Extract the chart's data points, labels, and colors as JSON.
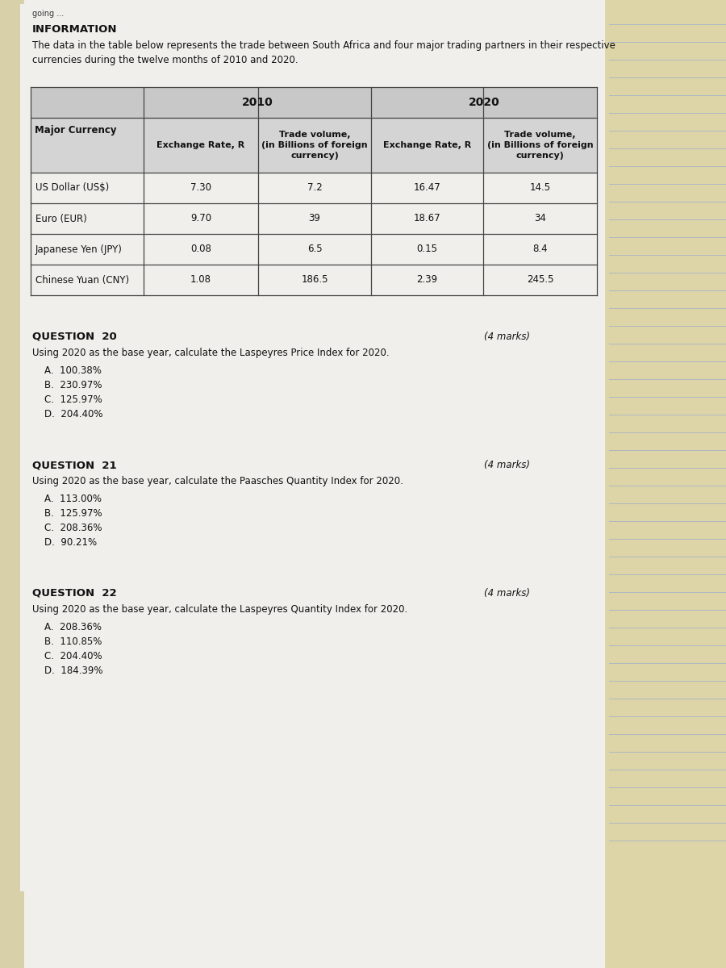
{
  "info_title": "INFORMATION",
  "info_text": "The data in the table below represents the trade between South Africa and four major trading partners in their respective\ncurrencies during the twelve months of 2010 and 2020.",
  "table": {
    "header_row1": [
      "Major Currency",
      "2010",
      "2020"
    ],
    "header_row2": [
      "",
      "Exchange Rate, R",
      "Trade volume,\n(in Billions of foreign\ncurrency)",
      "Exchange Rate, R",
      "Trade volume,\n(in Billions of foreign\ncurrency)"
    ],
    "rows": [
      [
        "US Dollar (US$)",
        "7.30",
        "7.2",
        "16.47",
        "14.5"
      ],
      [
        "Euro (EUR)",
        "9.70",
        "39",
        "18.67",
        "34"
      ],
      [
        "Japanese Yen (JPY)",
        "0.08",
        "6.5",
        "0.15",
        "8.4"
      ],
      [
        "Chinese Yuan (CNY)",
        "1.08",
        "186.5",
        "2.39",
        "245.5"
      ]
    ]
  },
  "questions": [
    {
      "number": "QUESTION  20",
      "marks": "(4 marks)",
      "text": "Using 2020 as the base year, calculate the Laspeyres Price Index for 2020.",
      "options": [
        "A.  100.38%",
        "B.  230.97%",
        "C.  125.97%",
        "D.  204.40%"
      ]
    },
    {
      "number": "QUESTION  21",
      "marks": "(4 marks)",
      "text": "Using 2020 as the base year, calculate the Paasches Quantity Index for 2020.",
      "options": [
        "A.  113.00%",
        "B.  125.97%",
        "C.  208.36%",
        "D.  90.21%"
      ]
    },
    {
      "number": "QUESTION  22",
      "marks": "(4 marks)",
      "text": "Using 2020 as the base year, calculate the Laspeyres Quantity Index for 2020.",
      "options": [
        "A.  208.36%",
        "B.  110.85%",
        "C.  204.40%",
        "D.  184.39%"
      ]
    }
  ],
  "bg_right_color": "#e8dfc0",
  "paper_color": "#f0efeb",
  "table_header_bg": "#c8c8c8",
  "table_subheader_bg": "#d4d4d4",
  "line_color": "#444444",
  "text_color": "#111111",
  "notebook_line_color": "#b0b8c0"
}
